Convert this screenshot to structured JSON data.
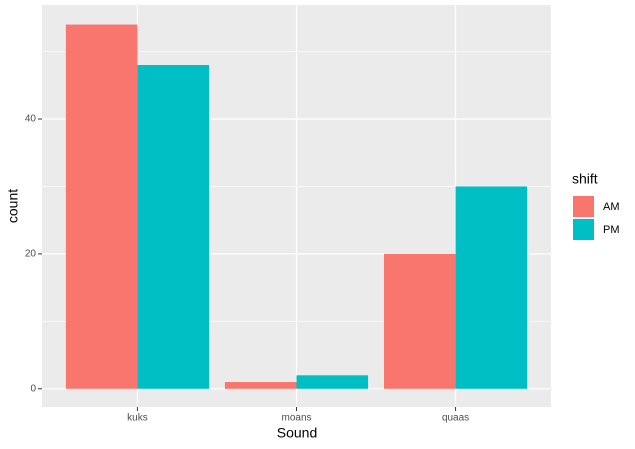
{
  "chart_data": {
    "type": "bar",
    "x_label": "Sound",
    "y_label": "count",
    "categories": [
      "kuks",
      "moans",
      "quaas"
    ],
    "series": [
      {
        "name": "AM",
        "color": "#f8766d",
        "values": [
          54,
          1,
          20
        ]
      },
      {
        "name": "PM",
        "color": "#00bfc4",
        "values": [
          48,
          2,
          30
        ]
      }
    ],
    "legend_title": "shift",
    "legend_position": "right",
    "ylim": [
      -2.7,
      56.9
    ],
    "yticks": [
      0,
      20,
      40
    ],
    "minor_yticks": [
      10,
      30,
      50
    ],
    "grid": true
  }
}
